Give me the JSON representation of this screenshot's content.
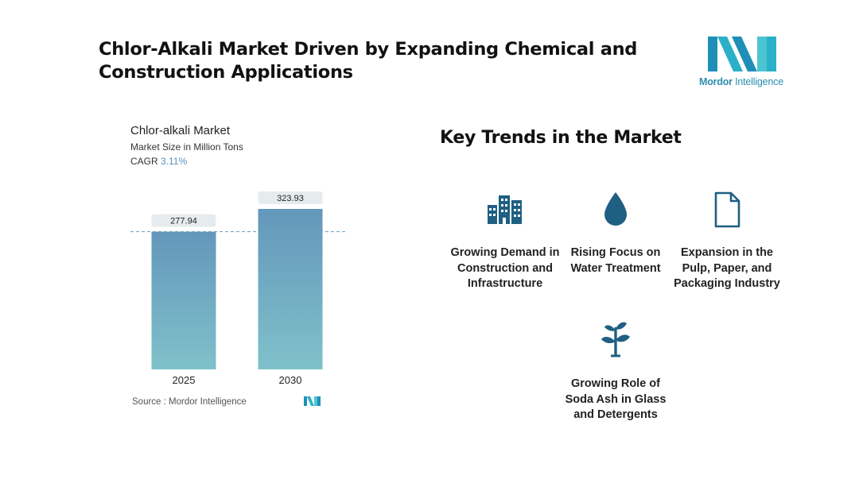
{
  "header": {
    "title": "Chlor-Alkali Market Driven by Expanding Chemical and Construction Applications",
    "brand_name_bold": "Mordor",
    "brand_name_rest": " Intelligence"
  },
  "chart_data": {
    "type": "bar",
    "title": "Chlor-alkali Market",
    "subtitle": "Market Size in Million Tons",
    "cagr_label": "CAGR",
    "cagr_value": "3.11%",
    "categories": [
      "2025",
      "2030"
    ],
    "values": [
      277.94,
      323.93
    ],
    "data_labels": [
      "277.94",
      "323.93"
    ],
    "ylim": [
      0,
      323.93
    ],
    "reference_line": "dashed at first bar value",
    "bar_gradient": [
      "#6497bb",
      "#7fc1ca"
    ],
    "grid": false
  },
  "source": {
    "label": "Source :",
    "name": "Mordor Intelligence"
  },
  "trends": {
    "title": "Key Trends in the Market",
    "items": [
      {
        "label": "Growing Demand in Construction and Infrastructure",
        "icon": "buildings-icon"
      },
      {
        "label": "Rising Focus on Water Treatment",
        "icon": "water-drop-icon"
      },
      {
        "label": "Expansion in the Pulp, Paper, and Packaging Industry",
        "icon": "document-icon"
      },
      {
        "label": "Growing Role of Soda Ash in Glass and Detergents",
        "icon": "sprout-icon"
      }
    ]
  },
  "colors": {
    "accent": "#1f5f82",
    "logo_dark": "#1f7fa6",
    "logo_light": "#4cc4d2"
  }
}
